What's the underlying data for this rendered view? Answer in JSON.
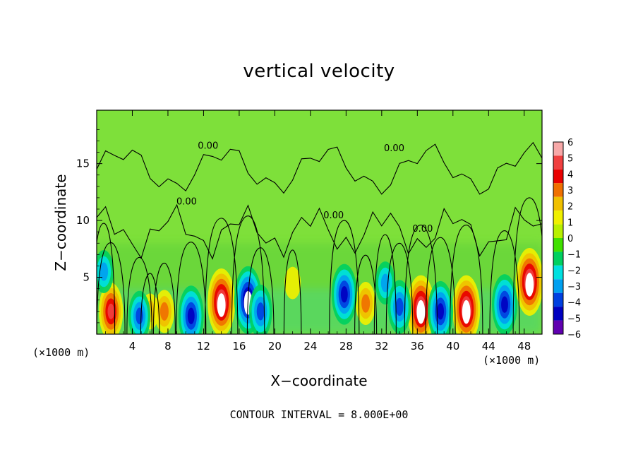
{
  "chart_data": {
    "type": "heatmap",
    "title": "vertical velocity",
    "xlabel": "X−coordinate",
    "ylabel": "Z−coordinate",
    "x_unit": "(×1000 m)",
    "z_unit": "(×1000 m)",
    "footer": "CONTOUR INTERVAL = 8.000E+00",
    "xlim": [
      0,
      50
    ],
    "ylim": [
      0,
      19.7
    ],
    "x_ticks": [
      "4",
      "8",
      "12",
      "16",
      "20",
      "24",
      "28",
      "32",
      "36",
      "40",
      "44",
      "48"
    ],
    "x_tick_values": [
      4,
      8,
      12,
      16,
      20,
      24,
      28,
      32,
      36,
      40,
      44,
      48
    ],
    "y_ticks": [
      "5",
      "10",
      "15"
    ],
    "y_tick_values": [
      5,
      10,
      15
    ],
    "colorbar": {
      "range": [
        -6,
        6
      ],
      "labels": [
        "6",
        "5",
        "4",
        "3",
        "2",
        "1",
        "0",
        "−1",
        "−2",
        "−3",
        "−4",
        "−5",
        "−6"
      ],
      "colors": [
        "#f7a8a8",
        "#f04040",
        "#e80000",
        "#f07000",
        "#f0c000",
        "#f0f000",
        "#b8f000",
        "#40e000",
        "#00d060",
        "#00e0e0",
        "#00a0f0",
        "#0040e0",
        "#0000c0",
        "#6000b0"
      ]
    },
    "contour_labels": [
      {
        "text": "0.00",
        "x": 12.5,
        "z": 16.3
      },
      {
        "text": "0.00",
        "x": 10.1,
        "z": 11.4
      },
      {
        "text": "0.00",
        "x": 26.6,
        "z": 10.2
      },
      {
        "text": "0.00",
        "x": 33.4,
        "z": 16.1
      },
      {
        "text": "0.00",
        "x": 36.6,
        "z": 9.0
      }
    ],
    "updraft_cells": [
      {
        "x": 1.6,
        "z": 2.0,
        "w": 4.5
      },
      {
        "x": 6.0,
        "z": 2.0,
        "w": 1.5
      },
      {
        "x": 7.6,
        "z": 2.0,
        "w": 2.5
      },
      {
        "x": 14.0,
        "z": 2.8,
        "w": 6.0
      },
      {
        "x": 22.0,
        "z": 4.5,
        "w": 1.0
      },
      {
        "x": 30.2,
        "z": 2.7,
        "w": 2.5
      },
      {
        "x": 36.4,
        "z": 2.2,
        "w": 6.0
      },
      {
        "x": 41.5,
        "z": 2.2,
        "w": 6.0
      },
      {
        "x": 48.6,
        "z": 4.6,
        "w": 6.0
      }
    ],
    "downdraft_cells": [
      {
        "x": 0.8,
        "z": 5.5,
        "w": -2.5
      },
      {
        "x": 4.8,
        "z": 1.6,
        "w": -3.5
      },
      {
        "x": 10.6,
        "z": 1.6,
        "w": -5.0
      },
      {
        "x": 17.0,
        "z": 3.0,
        "w": -6.0
      },
      {
        "x": 18.4,
        "z": 2.0,
        "w": -4.0
      },
      {
        "x": 27.8,
        "z": 3.5,
        "w": -5.0
      },
      {
        "x": 32.4,
        "z": 4.5,
        "w": -2.5
      },
      {
        "x": 34.0,
        "z": 2.4,
        "w": -4.0
      },
      {
        "x": 38.6,
        "z": 2.0,
        "w": -5.0
      },
      {
        "x": 45.8,
        "z": 2.6,
        "w": -5.0
      }
    ]
  }
}
